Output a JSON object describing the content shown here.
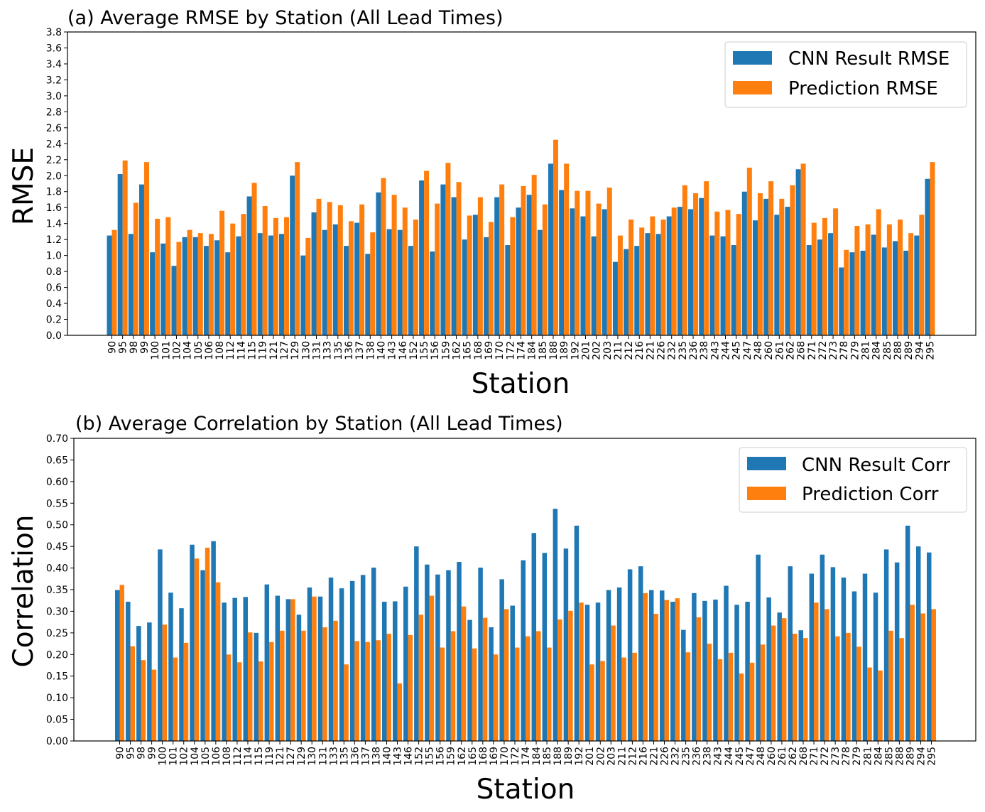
{
  "colors": {
    "cnn": "#1f77b4",
    "pred": "#ff7f0e"
  },
  "chart_data": [
    {
      "type": "bar",
      "title": "(a) Average RMSE by Station (All Lead Times)",
      "xlabel": "Station",
      "ylabel": "RMSE",
      "ylim": [
        0,
        3.8
      ],
      "yticks": [
        "0.0",
        "0.2",
        "0.4",
        "0.6",
        "0.8",
        "1.0",
        "1.2",
        "1.4",
        "1.6",
        "1.8",
        "2.0",
        "2.2",
        "2.4",
        "2.6",
        "2.8",
        "3.0",
        "3.2",
        "3.4",
        "3.6",
        "3.8"
      ],
      "legend_position": "top-right",
      "categories": [
        "90",
        "95",
        "98",
        "99",
        "100",
        "101",
        "102",
        "104",
        "105",
        "106",
        "108",
        "112",
        "114",
        "115",
        "119",
        "121",
        "127",
        "129",
        "130",
        "131",
        "133",
        "135",
        "136",
        "137",
        "138",
        "140",
        "143",
        "146",
        "152",
        "155",
        "156",
        "159",
        "162",
        "165",
        "168",
        "169",
        "170",
        "172",
        "174",
        "184",
        "185",
        "188",
        "189",
        "192",
        "201",
        "202",
        "203",
        "211",
        "212",
        "216",
        "221",
        "226",
        "232",
        "235",
        "236",
        "238",
        "243",
        "244",
        "245",
        "247",
        "248",
        "260",
        "261",
        "262",
        "268",
        "271",
        "272",
        "273",
        "278",
        "279",
        "281",
        "284",
        "285",
        "288",
        "289",
        "294",
        "295"
      ],
      "series": [
        {
          "name": "CNN Result RMSE",
          "values": [
            1.25,
            2.02,
            1.27,
            1.89,
            1.04,
            1.15,
            0.87,
            1.23,
            1.23,
            1.12,
            1.19,
            1.04,
            1.24,
            1.74,
            1.28,
            1.25,
            1.27,
            2.0,
            1.0,
            1.54,
            1.32,
            1.39,
            1.12,
            1.41,
            1.02,
            1.79,
            1.33,
            1.32,
            1.12,
            1.94,
            1.05,
            1.89,
            1.73,
            1.2,
            1.51,
            1.23,
            1.73,
            1.13,
            1.6,
            1.76,
            1.32,
            2.15,
            1.82,
            1.59,
            1.49,
            1.24,
            1.58,
            0.92,
            1.08,
            1.12,
            1.28,
            1.27,
            1.49,
            1.61,
            1.58,
            1.72,
            1.25,
            1.24,
            1.13,
            1.8,
            1.44,
            1.71,
            1.51,
            1.61,
            2.08,
            1.13,
            1.2,
            1.28,
            0.85,
            1.04,
            1.06,
            1.26,
            1.1,
            1.18,
            1.06,
            1.25,
            1.96
          ]
        },
        {
          "name": "Prediction RMSE",
          "values": [
            1.32,
            2.19,
            1.66,
            2.17,
            1.46,
            1.48,
            1.17,
            1.32,
            1.28,
            1.27,
            1.56,
            1.4,
            1.52,
            1.91,
            1.62,
            1.47,
            1.48,
            2.17,
            1.22,
            1.71,
            1.67,
            1.63,
            1.43,
            1.64,
            1.29,
            1.97,
            1.76,
            1.6,
            1.45,
            2.06,
            1.65,
            2.16,
            1.92,
            1.5,
            1.73,
            1.42,
            1.89,
            1.48,
            1.87,
            2.01,
            1.64,
            2.45,
            2.15,
            1.81,
            1.81,
            1.65,
            1.85,
            1.25,
            1.45,
            1.35,
            1.49,
            1.45,
            1.6,
            1.88,
            1.78,
            1.93,
            1.55,
            1.57,
            1.52,
            2.1,
            1.78,
            1.93,
            1.71,
            1.88,
            2.15,
            1.41,
            1.47,
            1.59,
            1.07,
            1.37,
            1.39,
            1.58,
            1.39,
            1.45,
            1.28,
            1.51,
            2.17
          ]
        }
      ]
    },
    {
      "type": "bar",
      "title": "(b) Average Correlation by Station (All Lead Times)",
      "xlabel": "Station",
      "ylabel": "Correlation",
      "ylim": [
        0,
        0.7
      ],
      "yticks": [
        "0.00",
        "0.05",
        "0.10",
        "0.15",
        "0.20",
        "0.25",
        "0.30",
        "0.35",
        "0.40",
        "0.45",
        "0.50",
        "0.55",
        "0.60",
        "0.65",
        "0.70"
      ],
      "legend_position": "top-right",
      "categories": [
        "90",
        "95",
        "98",
        "99",
        "100",
        "101",
        "102",
        "104",
        "105",
        "106",
        "108",
        "112",
        "114",
        "115",
        "119",
        "121",
        "127",
        "129",
        "130",
        "131",
        "133",
        "135",
        "136",
        "137",
        "138",
        "140",
        "143",
        "146",
        "152",
        "155",
        "156",
        "159",
        "162",
        "165",
        "168",
        "169",
        "170",
        "172",
        "174",
        "184",
        "185",
        "188",
        "189",
        "192",
        "201",
        "202",
        "203",
        "211",
        "212",
        "216",
        "221",
        "226",
        "232",
        "235",
        "236",
        "238",
        "243",
        "244",
        "245",
        "247",
        "248",
        "260",
        "261",
        "262",
        "268",
        "271",
        "272",
        "273",
        "278",
        "279",
        "281",
        "284",
        "285",
        "288",
        "289",
        "294",
        "295"
      ],
      "series": [
        {
          "name": "CNN Result Corr",
          "values": [
            0.349,
            0.322,
            0.266,
            0.274,
            0.443,
            0.343,
            0.307,
            0.454,
            0.395,
            0.462,
            0.32,
            0.331,
            0.333,
            0.25,
            0.362,
            0.336,
            0.328,
            0.292,
            0.355,
            0.334,
            0.378,
            0.353,
            0.37,
            0.384,
            0.401,
            0.322,
            0.323,
            0.357,
            0.45,
            0.408,
            0.385,
            0.395,
            0.414,
            0.28,
            0.401,
            0.263,
            0.374,
            0.313,
            0.418,
            0.481,
            0.435,
            0.537,
            0.445,
            0.498,
            0.315,
            0.32,
            0.349,
            0.355,
            0.397,
            0.404,
            0.349,
            0.348,
            0.322,
            0.257,
            0.342,
            0.324,
            0.327,
            0.359,
            0.315,
            0.322,
            0.431,
            0.332,
            0.297,
            0.404,
            0.256,
            0.387,
            0.431,
            0.402,
            0.378,
            0.346,
            0.387,
            0.343,
            0.443,
            0.413,
            0.498,
            0.45,
            0.436
          ]
        },
        {
          "name": "Prediction Corr",
          "values": [
            0.361,
            0.219,
            0.187,
            0.165,
            0.269,
            0.193,
            0.227,
            0.422,
            0.447,
            0.367,
            0.2,
            0.182,
            0.251,
            0.184,
            0.229,
            0.255,
            0.328,
            0.255,
            0.334,
            0.263,
            0.278,
            0.177,
            0.231,
            0.229,
            0.233,
            0.248,
            0.133,
            0.245,
            0.292,
            0.336,
            0.216,
            0.254,
            0.311,
            0.214,
            0.285,
            0.2,
            0.305,
            0.216,
            0.242,
            0.254,
            0.216,
            0.281,
            0.301,
            0.32,
            0.177,
            0.185,
            0.267,
            0.193,
            0.204,
            0.342,
            0.294,
            0.326,
            0.33,
            0.205,
            0.286,
            0.225,
            0.189,
            0.204,
            0.156,
            0.181,
            0.223,
            0.267,
            0.284,
            0.248,
            0.238,
            0.32,
            0.305,
            0.242,
            0.25,
            0.218,
            0.17,
            0.163,
            0.255,
            0.238,
            0.315,
            0.295,
            0.305
          ]
        }
      ]
    }
  ]
}
